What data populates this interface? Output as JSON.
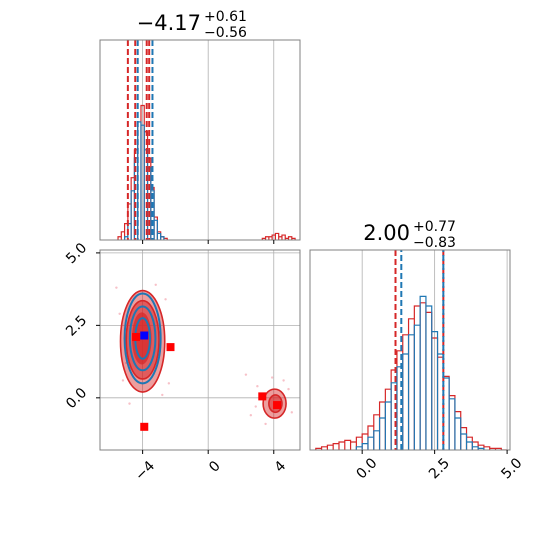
{
  "chart_data": {
    "type": "corner",
    "colors": {
      "red": "#d62728",
      "blue": "#1f77b4",
      "marker_red": "#ff0000",
      "marker_blue": "#0000ff",
      "grid": "#b0b0b0"
    },
    "titles": {
      "p1": {
        "median": "−4.17",
        "plus": "+0.61",
        "minus": "−0.56"
      },
      "p2": {
        "median": "2.00",
        "plus": "+0.77",
        "minus": "−0.83"
      }
    },
    "x_ticks_p1": [
      {
        "value": -4,
        "label": "−4"
      },
      {
        "value": 0,
        "label": "0"
      },
      {
        "value": 4,
        "label": "4"
      }
    ],
    "x_ticks_p2": [
      {
        "value": 0.0,
        "label": "0.0"
      },
      {
        "value": 2.5,
        "label": "2.5"
      },
      {
        "value": 5.0,
        "label": "5.0"
      }
    ],
    "y_ticks_p2": [
      {
        "value": 5.0,
        "label": "5.0"
      },
      {
        "value": 2.5,
        "label": "2.5"
      },
      {
        "value": 0.0,
        "label": "0.0"
      }
    ],
    "p1_range": [
      -6.6,
      5.6
    ],
    "p2_range": [
      -1.8,
      5.1
    ],
    "p1_quantile_lines": {
      "red": [
        -4.9,
        -4.45,
        -3.75,
        -3.6
      ],
      "blue": [
        -4.3,
        -3.4
      ]
    },
    "p2_quantile_lines": {
      "red": [
        1.15,
        2.8
      ],
      "blue": [
        1.35,
        2.8
      ]
    },
    "hist_p1_red": {
      "x": [
        -5.4,
        -5.2,
        -5.0,
        -4.8,
        -4.6,
        -4.4,
        -4.2,
        -4.0,
        -3.8,
        -3.6,
        -3.4,
        -3.2,
        -3.0,
        -2.8,
        -2.6,
        3.4,
        3.6,
        3.8,
        4.0,
        4.2,
        4.4,
        4.6,
        4.8,
        5.0,
        5.2
      ],
      "y": [
        0.02,
        0.05,
        0.1,
        0.22,
        0.38,
        0.55,
        0.72,
        0.82,
        0.66,
        0.5,
        0.32,
        0.14,
        0.05,
        0.02,
        0.01,
        0.01,
        0.02,
        0.02,
        0.03,
        0.04,
        0.02,
        0.03,
        0.01,
        0.02,
        0.01
      ]
    },
    "hist_p1_blue": {
      "x": [
        -5.0,
        -4.8,
        -4.6,
        -4.4,
        -4.2,
        -4.0,
        -3.8,
        -3.6,
        -3.4,
        -3.2,
        -3.0,
        -2.8
      ],
      "y": [
        0.02,
        0.1,
        0.3,
        0.5,
        0.72,
        0.7,
        0.55,
        0.44,
        0.3,
        0.12,
        0.04,
        0.02
      ]
    },
    "hist_p2_red": {
      "x": [
        -1.5,
        -1.3,
        -1.1,
        -0.9,
        -0.7,
        -0.5,
        -0.3,
        -0.1,
        0.1,
        0.3,
        0.5,
        0.7,
        0.9,
        1.1,
        1.3,
        1.5,
        1.7,
        1.9,
        2.1,
        2.3,
        2.5,
        2.7,
        2.9,
        3.1,
        3.3,
        3.5,
        3.7,
        3.9,
        4.1,
        4.3,
        4.5,
        4.7,
        4.9
      ],
      "y": [
        0.01,
        0.02,
        0.03,
        0.04,
        0.05,
        0.06,
        0.05,
        0.08,
        0.1,
        0.15,
        0.22,
        0.3,
        0.38,
        0.5,
        0.62,
        0.72,
        0.82,
        0.9,
        0.92,
        0.86,
        0.7,
        0.58,
        0.46,
        0.34,
        0.24,
        0.14,
        0.08,
        0.05,
        0.03,
        0.02,
        0.01,
        0.01,
        0.0
      ]
    },
    "hist_p2_blue": {
      "x": [
        -0.1,
        0.1,
        0.3,
        0.5,
        0.7,
        0.9,
        1.1,
        1.3,
        1.5,
        1.7,
        1.9,
        2.1,
        2.3,
        2.5,
        2.7,
        2.9,
        3.1,
        3.3,
        3.5,
        3.7,
        3.9,
        4.1
      ],
      "y": [
        0.02,
        0.04,
        0.08,
        0.12,
        0.2,
        0.3,
        0.42,
        0.52,
        0.6,
        0.72,
        0.78,
        0.96,
        0.9,
        0.74,
        0.6,
        0.45,
        0.32,
        0.2,
        0.1,
        0.05,
        0.02,
        0.01
      ]
    },
    "contours": [
      {
        "series": "red",
        "cx": -4.0,
        "cy": 1.95,
        "rx": 1.35,
        "ry": 1.75,
        "fill_opacity": 0.45,
        "outline": true
      },
      {
        "series": "red",
        "cx": -4.0,
        "cy": 2.0,
        "rx": 1.0,
        "ry": 1.35,
        "fill_opacity": 0.55,
        "outline": true
      },
      {
        "series": "red",
        "cx": -4.05,
        "cy": 2.05,
        "rx": 0.6,
        "ry": 0.9,
        "fill_opacity": 0.7,
        "outline": false
      },
      {
        "series": "red",
        "cx": 4.05,
        "cy": -0.2,
        "rx": 0.7,
        "ry": 0.5,
        "fill_opacity": 0.45,
        "outline": true
      },
      {
        "series": "red",
        "cx": 4.1,
        "cy": -0.2,
        "rx": 0.4,
        "ry": 0.3,
        "fill_opacity": 0.55,
        "outline": true
      },
      {
        "series": "blue",
        "cx": -4.0,
        "cy": 2.05,
        "rx": 1.1,
        "ry": 1.55,
        "fill_opacity": 0,
        "outline": true
      },
      {
        "series": "blue",
        "cx": -4.0,
        "cy": 2.05,
        "rx": 0.78,
        "ry": 1.1,
        "fill_opacity": 0,
        "outline": true
      },
      {
        "series": "blue",
        "cx": -4.0,
        "cy": 2.05,
        "rx": 0.45,
        "ry": 0.7,
        "fill_opacity": 0,
        "outline": true
      }
    ],
    "markers": [
      {
        "series": "red",
        "x": -4.4,
        "y": 2.1
      },
      {
        "series": "red",
        "x": -2.3,
        "y": 1.75
      },
      {
        "series": "red",
        "x": 3.3,
        "y": 0.05
      },
      {
        "series": "red",
        "x": 4.2,
        "y": -0.25
      },
      {
        "series": "red",
        "x": -3.9,
        "y": -1.0
      },
      {
        "series": "blue",
        "x": -3.9,
        "y": 2.15
      }
    ],
    "scatter_points": [
      [
        -5.6,
        3.8
      ],
      [
        -5.2,
        0.6
      ],
      [
        -2.6,
        3.4
      ],
      [
        -2.4,
        0.5
      ],
      [
        -5.4,
        2.9
      ],
      [
        -2.8,
        0.1
      ],
      [
        2.3,
        0.8
      ],
      [
        2.6,
        -0.6
      ],
      [
        3.0,
        0.4
      ],
      [
        4.9,
        0.3
      ],
      [
        5.1,
        -0.5
      ],
      [
        3.5,
        -0.9
      ],
      [
        4.6,
        0.6
      ],
      [
        2.9,
        -0.3
      ],
      [
        -4.8,
        -0.2
      ],
      [
        -3.2,
        3.9
      ],
      [
        -5.0,
        1.2
      ],
      [
        3.9,
        0.7
      ]
    ]
  }
}
